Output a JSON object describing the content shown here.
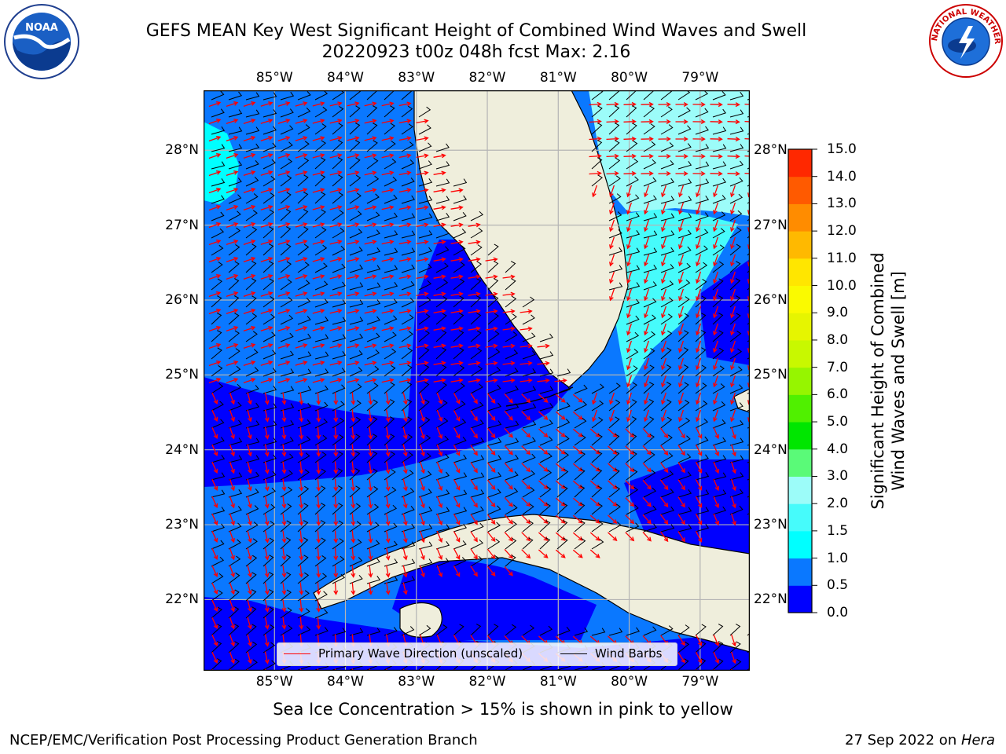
{
  "header": {
    "title_line1": "GEFS MEAN Key West Significant Height of Combined Wind Waves and Swell",
    "title_line2": "20220923 t00z 048h fcst   Max: 2.16"
  },
  "logos": {
    "left": {
      "icon": "noaa-logo-icon",
      "text": "NOAA"
    },
    "right": {
      "icon": "nws-logo-icon",
      "ring_text": "NATIONAL WEATHER SERVICE"
    }
  },
  "map": {
    "lon_labels": [
      "85°W",
      "84°W",
      "83°W",
      "82°W",
      "81°W",
      "80°W",
      "79°W"
    ],
    "lat_labels": [
      "28°N",
      "27°N",
      "26°N",
      "25°N",
      "24°N",
      "23°N",
      "22°N"
    ],
    "lon_range": [
      -86.0,
      -78.3
    ],
    "lat_range": [
      21.05,
      28.8
    ],
    "colors": {
      "land": "#efeedc",
      "band_0_0.5": "#0000ff",
      "band_0.5_1.0": "#0a78ff",
      "band_1.0_1.5": "#00ffff",
      "band_1.5_2.0": "#46fbfb",
      "band_2.0_3.0": "#9cfcf9",
      "wave_direction": "#ff0000",
      "wind_barb": "#000000",
      "grid": "#b4b4b4"
    }
  },
  "legend": {
    "primary_wave_label": "Primary Wave Direction (unscaled)",
    "wind_barbs_label": "Wind Barbs"
  },
  "colorbar": {
    "title_line1": "Significant Height of Combined",
    "title_line2": "Wind Waves and Swell [m]",
    "ticks": [
      "15.0",
      "14.0",
      "13.0",
      "12.0",
      "11.0",
      "10.0",
      "9.0",
      "8.0",
      "7.0",
      "6.0",
      "5.0",
      "4.0",
      "3.0",
      "2.0",
      "1.5",
      "1.0",
      "0.5",
      "0.0"
    ],
    "colors": [
      "#0000ff",
      "#0a78ff",
      "#00ffff",
      "#46fbfb",
      "#9cfcf9",
      "#5afa78",
      "#00e600",
      "#50f000",
      "#96f500",
      "#c8f800",
      "#e6f500",
      "#fafa00",
      "#ffe600",
      "#ffb900",
      "#ff8c00",
      "#ff5a00",
      "#ff2800"
    ]
  },
  "footer": {
    "note": "Sea Ice Concentration > 15% is shown in pink to yellow",
    "left": "NCEP/EMC/Verification Post Processing Product Generation Branch",
    "right_date": "27 Sep 2022 on ",
    "right_host": "Hera"
  }
}
